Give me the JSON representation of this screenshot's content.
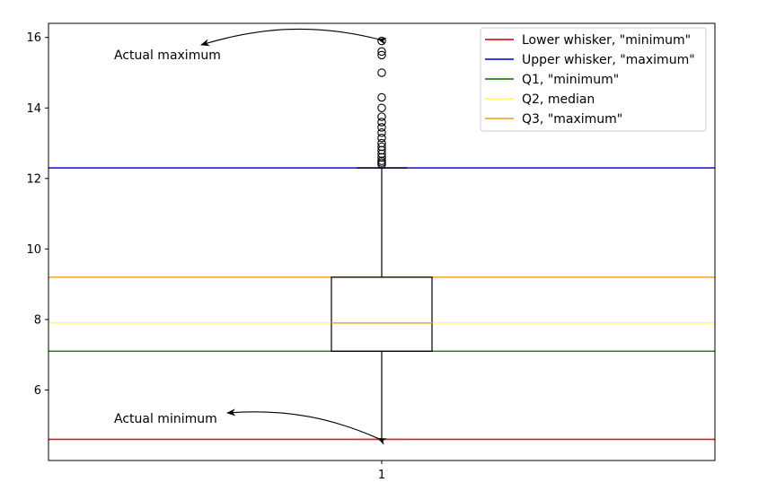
{
  "chart_data": {
    "type": "box",
    "title": "",
    "xlabel": "",
    "ylabel": "",
    "x_categories": [
      "1"
    ],
    "ylim": [
      4.0,
      16.4
    ],
    "y_ticks": [
      6,
      8,
      10,
      12,
      14,
      16
    ],
    "grid": false,
    "box": {
      "category": "1",
      "whisker_low": 4.6,
      "q1": 7.1,
      "median": 7.9,
      "q3": 9.2,
      "whisker_high": 12.3,
      "outliers": [
        12.4,
        12.45,
        12.5,
        12.6,
        12.7,
        12.8,
        12.9,
        13.0,
        13.15,
        13.3,
        13.45,
        13.6,
        13.75,
        14.0,
        14.3,
        15.0,
        15.5,
        15.6,
        15.9
      ]
    },
    "reference_lines": [
      {
        "label": "Lower whisker, \"minimum\"",
        "y": 4.6,
        "color": "#e41a1c"
      },
      {
        "label": "Upper whisker, \"maximum\"",
        "y": 12.3,
        "color": "#1f1fd0"
      },
      {
        "label": "Q1, \"minimum\"",
        "y": 7.1,
        "color": "#2e7d1a"
      },
      {
        "label": "Q2, median",
        "y": 7.9,
        "color": "#ffff66"
      },
      {
        "label": "Q3, \"maximum\"",
        "y": 9.2,
        "color": "#f2a93b"
      }
    ],
    "legend_position": "upper right",
    "annotations": [
      {
        "text": "Actual maximum",
        "points_to_y": 15.9
      },
      {
        "text": "Actual minimum",
        "points_to_y": 4.6
      }
    ]
  }
}
